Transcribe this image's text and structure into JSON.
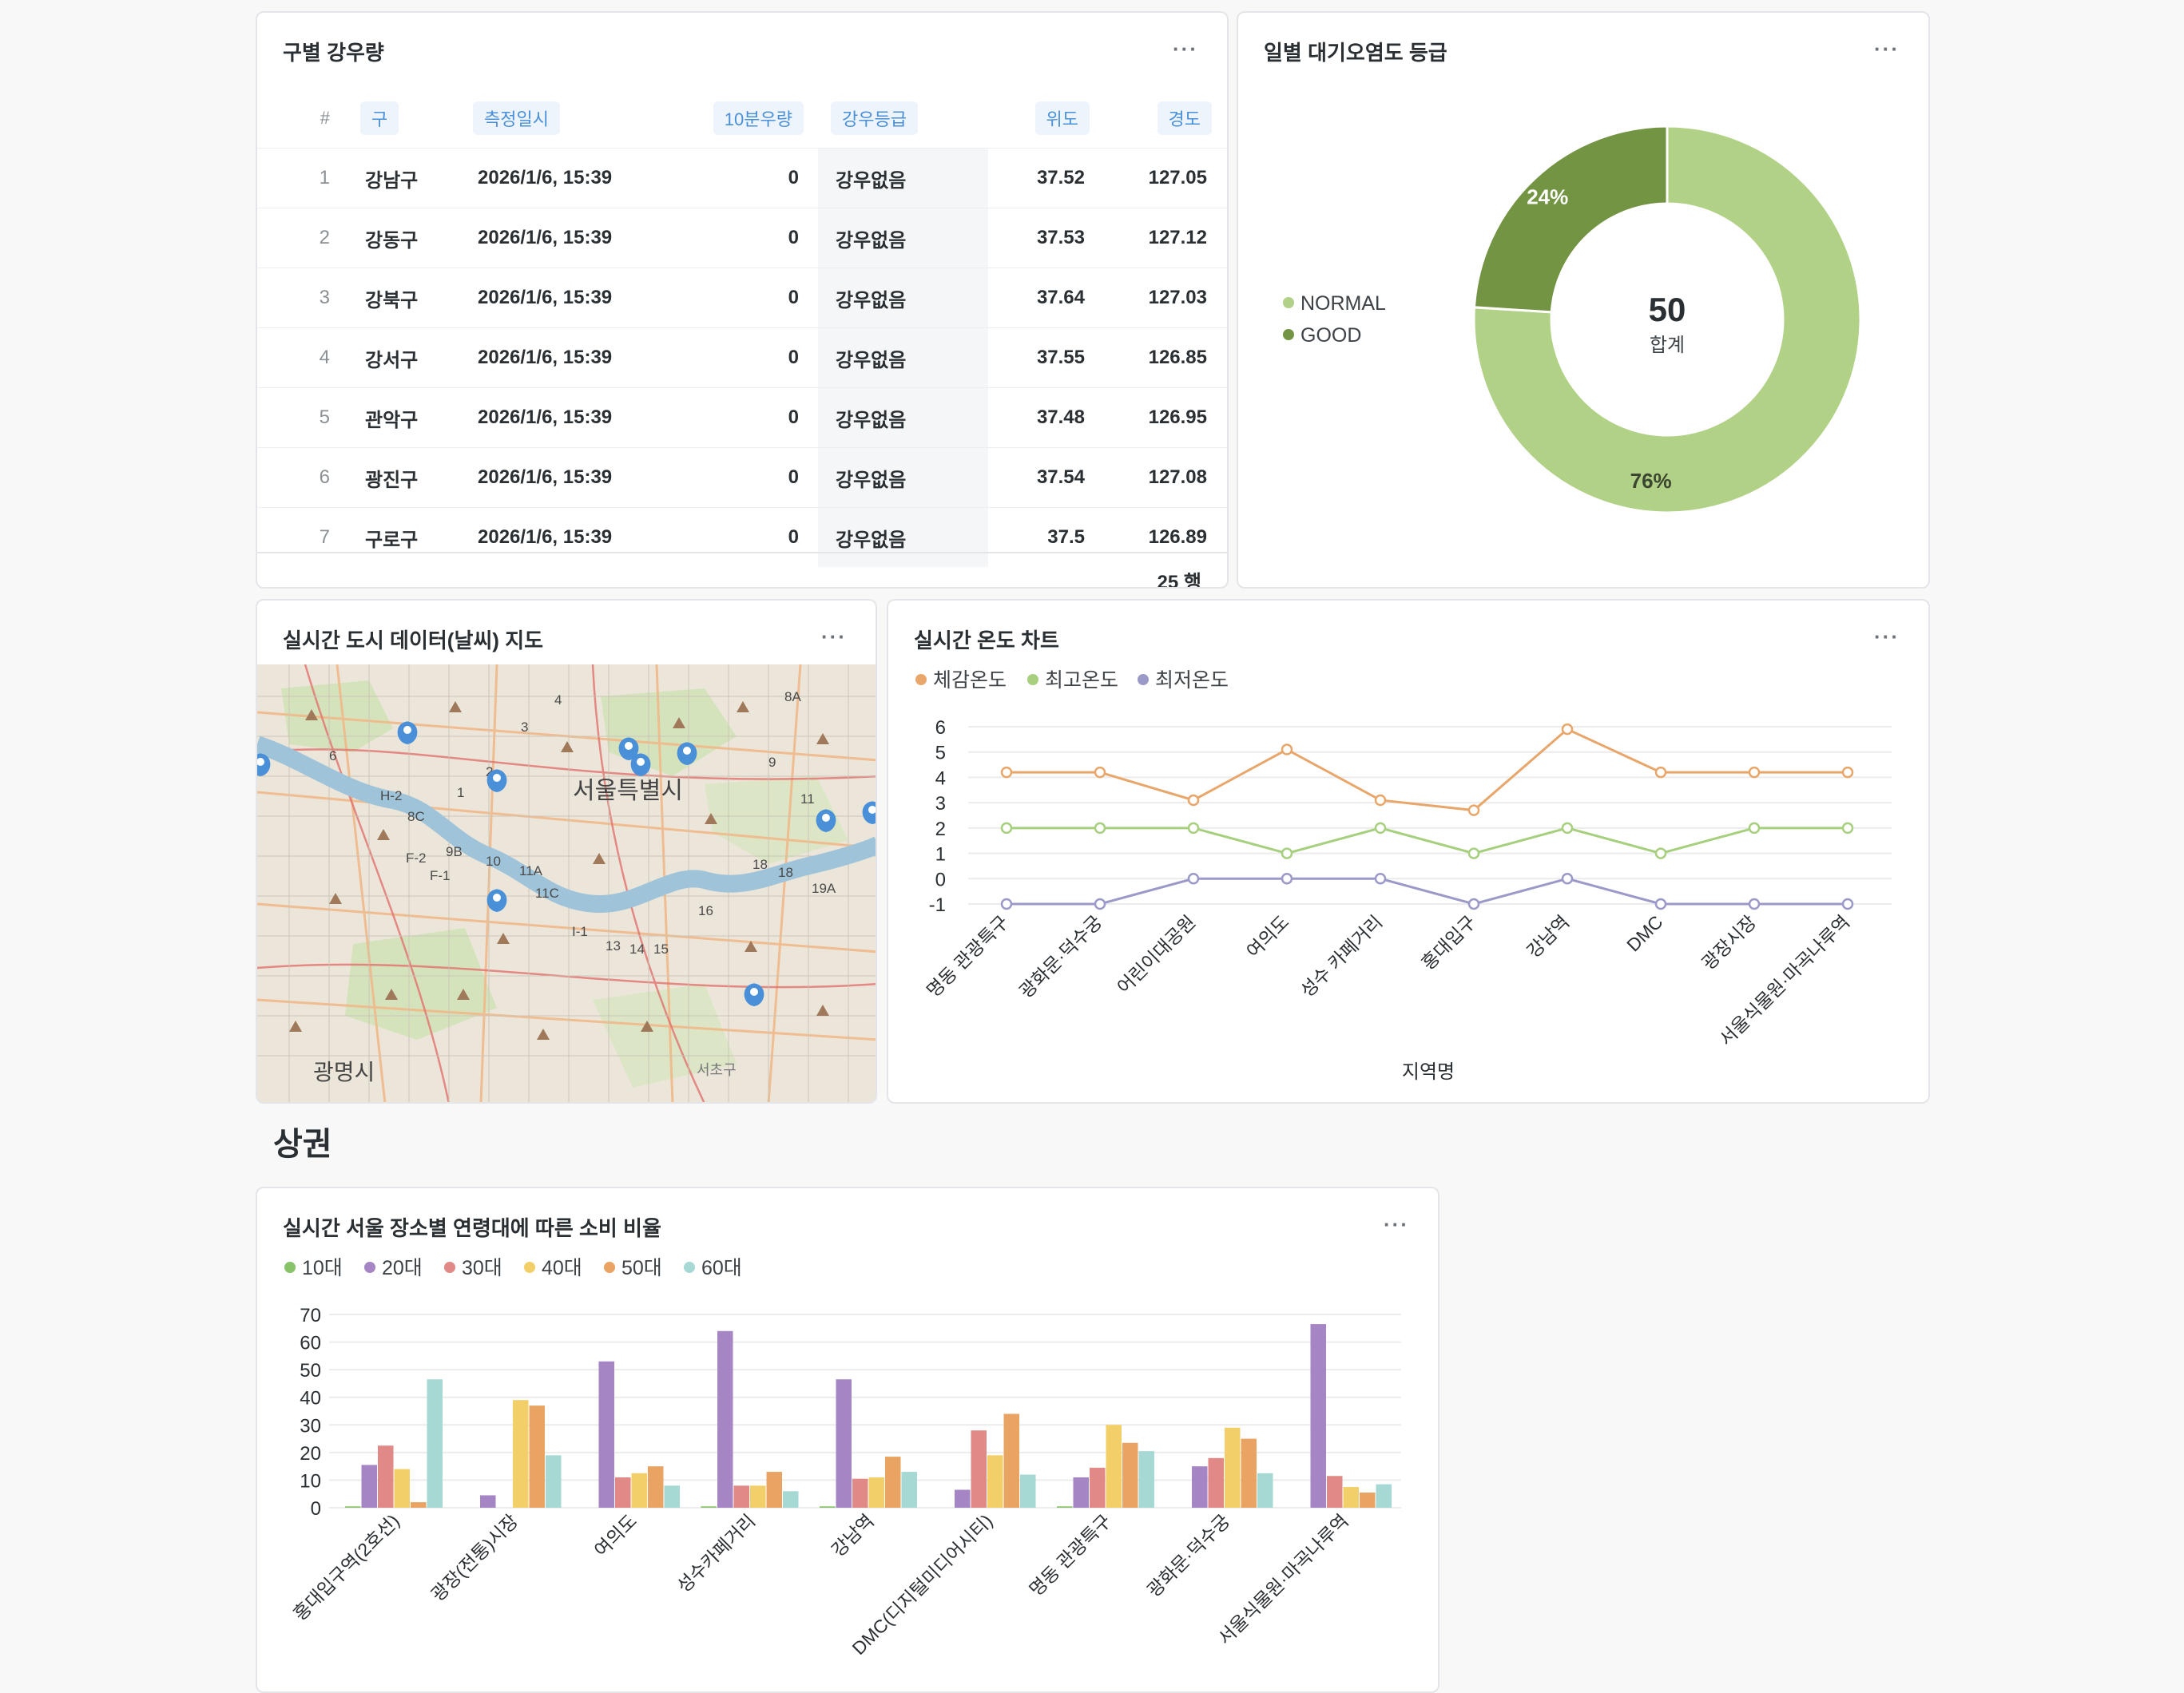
{
  "rainfall": {
    "title": "구별 강우량",
    "menu": "···",
    "headers": [
      "#",
      "구",
      "측정일시",
      "10분우량",
      "강우등급",
      "위도",
      "경도"
    ],
    "rows": [
      [
        "1",
        "강남구",
        "2026/1/6, 15:39",
        "0",
        "강우없음",
        "37.52",
        "127.05"
      ],
      [
        "2",
        "강동구",
        "2026/1/6, 15:39",
        "0",
        "강우없음",
        "37.53",
        "127.12"
      ],
      [
        "3",
        "강북구",
        "2026/1/6, 15:39",
        "0",
        "강우없음",
        "37.64",
        "127.03"
      ],
      [
        "4",
        "강서구",
        "2026/1/6, 15:39",
        "0",
        "강우없음",
        "37.55",
        "126.85"
      ],
      [
        "5",
        "관악구",
        "2026/1/6, 15:39",
        "0",
        "강우없음",
        "37.48",
        "126.95"
      ],
      [
        "6",
        "광진구",
        "2026/1/6, 15:39",
        "0",
        "강우없음",
        "37.54",
        "127.08"
      ],
      [
        "7",
        "구로구",
        "2026/1/6, 15:39",
        "0",
        "강우없음",
        "37.5",
        "126.89"
      ]
    ],
    "row_count": "25 행"
  },
  "air": {
    "title": "일별 대기오염도 등급",
    "menu": "···",
    "total_value": "50",
    "total_label": "합계",
    "colors": {
      "NORMAL": "#b0d186",
      "GOOD": "#739442"
    }
  },
  "map": {
    "title": "실시간 도시 데이터(날씨) 지도",
    "menu": "···",
    "labels": {
      "city": "서울특별시",
      "gwangmyeong": "광명시",
      "seocho": "서초구",
      "roads": [
        "8A",
        "9",
        "6",
        "3",
        "4",
        "2",
        "H-2",
        "8C",
        "1",
        "11",
        "F-2",
        "9B",
        "10",
        "11A",
        "F-1",
        "11C",
        "18",
        "18",
        "19A",
        "16",
        "I-1",
        "13",
        "14",
        "15"
      ]
    },
    "marker_count": 10
  },
  "temperature": {
    "title": "실시간 온도 차트",
    "menu": "···",
    "x_axis_title": "지역명"
  },
  "section": {
    "title": "상권"
  },
  "consumption": {
    "title": "실시간 서울 장소별 연령대에 따른 소비 비율",
    "menu": "···"
  },
  "chart_data": [
    {
      "type": "pie",
      "title": "일별 대기오염도 등급",
      "labels": [
        "NORMAL",
        "GOOD"
      ],
      "values": [
        76,
        24
      ],
      "percent_labels": [
        "76%",
        "24%"
      ],
      "colors": [
        "#b0d186",
        "#739442"
      ],
      "legend": "left",
      "center_value": "50",
      "center_label": "합계"
    },
    {
      "type": "line",
      "title": "실시간 온도 차트",
      "categories": [
        "명동 관광특구",
        "광화문·덕수궁",
        "어린이대공원",
        "여의도",
        "성수 카페거리",
        "홍대입구",
        "강남역",
        "DMC",
        "광장시장",
        "서울식물원·마곡나루역"
      ],
      "series": [
        {
          "name": "체감온도",
          "color": "#e8a66a",
          "values": [
            4.2,
            4.2,
            3.1,
            5.1,
            3.1,
            2.7,
            5.9,
            4.2,
            4.2,
            4.2
          ]
        },
        {
          "name": "최고온도",
          "color": "#a6cf7e",
          "values": [
            2,
            2,
            2,
            1,
            2,
            1,
            2,
            1,
            2,
            2
          ]
        },
        {
          "name": "최저온도",
          "color": "#9b99c8",
          "values": [
            -1,
            -1,
            0,
            0,
            0,
            -1,
            0,
            -1,
            -1,
            -1
          ]
        }
      ],
      "xlabel": "지역명",
      "ylabel": "",
      "yticks": [
        "6",
        "5",
        "4",
        "3",
        "2",
        "1",
        "0",
        "-1"
      ],
      "ylim": [
        -1,
        6
      ],
      "legend": "top-left",
      "grid": true
    },
    {
      "type": "bar",
      "title": "실시간 서울 장소별 연령대에 따른 소비 비율",
      "categories": [
        "홍대입구역(2호선)",
        "광장(전통)시장",
        "여의도",
        "성수카페거리",
        "강남역",
        "DMC(디지털미디어시티)",
        "명동 관광특구",
        "광화문·덕수궁",
        "서울식물원·마곡나루역"
      ],
      "series": [
        {
          "name": "10대",
          "color": "#88c36a",
          "values": [
            0.5,
            0,
            0,
            0.5,
            0.5,
            0,
            0.5,
            0,
            0
          ]
        },
        {
          "name": "20대",
          "color": "#a585c4",
          "values": [
            15.5,
            4.5,
            53,
            64,
            46.5,
            6.5,
            11,
            15,
            66.5
          ]
        },
        {
          "name": "30대",
          "color": "#e08986",
          "values": [
            22.5,
            0,
            11,
            8,
            10.5,
            28,
            14.5,
            18,
            11.5
          ]
        },
        {
          "name": "40대",
          "color": "#f3cf6a",
          "values": [
            14,
            39,
            12.5,
            8,
            11,
            19,
            30,
            29,
            7.5
          ]
        },
        {
          "name": "50대",
          "color": "#e9a464",
          "values": [
            2,
            37,
            15,
            13,
            18.5,
            34,
            23.5,
            25,
            5.5
          ]
        },
        {
          "name": "60대",
          "color": "#a6d8d4",
          "values": [
            46.5,
            19,
            8,
            6,
            13,
            12,
            20.5,
            12.5,
            8.5
          ]
        }
      ],
      "yticks": [
        "70",
        "60",
        "50",
        "40",
        "30",
        "20",
        "10",
        "0"
      ],
      "ylim": [
        0,
        70
      ],
      "legend": "top-left",
      "grid": true
    }
  ]
}
